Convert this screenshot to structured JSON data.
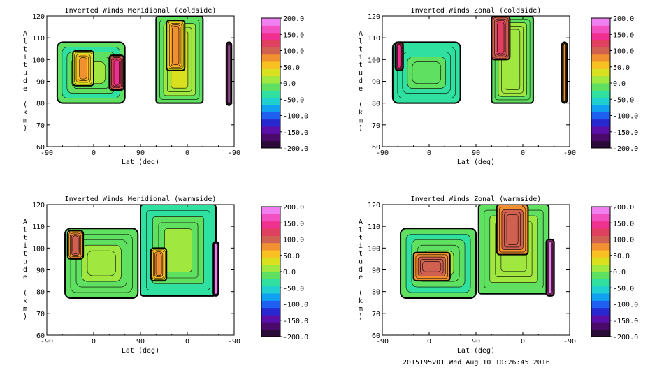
{
  "footer": "2015195v01 Wed Aug 10 10:26:45 2016",
  "colorbar": {
    "ticks": [
      "200.0",
      "150.0",
      "100.0",
      "50.0",
      "0.0",
      "-50.0",
      "-100.0",
      "-150.0",
      "-200.0"
    ],
    "colors": [
      "#2a0a36",
      "#4a0a6a",
      "#5a10a8",
      "#2828d0",
      "#2060f0",
      "#10a0f0",
      "#20d0d0",
      "#30e0a0",
      "#60e060",
      "#a0e840",
      "#d8e020",
      "#f8c020",
      "#f09030",
      "#d06050",
      "#e04060",
      "#f03090",
      "#f050c0",
      "#f080f0"
    ]
  },
  "chart_data": [
    {
      "type": "heatmap",
      "title": "Inverted Winds Meridional (coldside)",
      "xlabel": "Lat (deg)",
      "ylabel": "Altitude (km)",
      "xticks": [
        "-90",
        "0",
        "90",
        "0",
        "-90"
      ],
      "yticks": [
        "60",
        "70",
        "80",
        "90",
        "100",
        "110",
        "120"
      ],
      "ylim": [
        60,
        120
      ],
      "blobs": [
        {
          "x": [
            -70,
            60
          ],
          "y": [
            80,
            108
          ],
          "level": -20
        },
        {
          "x": [
            -40,
            0
          ],
          "y": [
            88,
            104
          ],
          "level": 30
        },
        {
          "x": [
            30,
            58
          ],
          "y": [
            86,
            102
          ],
          "level": 100
        },
        {
          "x": [
            120,
            210
          ],
          "y": [
            80,
            120
          ],
          "level": -15
        },
        {
          "x": [
            140,
            175
          ],
          "y": [
            95,
            118
          ],
          "level": 40
        },
        {
          "x": [
            255,
            265
          ],
          "y": [
            79,
            108
          ],
          "level": 150
        }
      ]
    },
    {
      "type": "heatmap",
      "title": "Inverted Winds Zonal (coldside)",
      "xlabel": "Lat (deg)",
      "ylabel": "Altitude (km)",
      "xticks": [
        "-90",
        "0",
        "90",
        "0",
        "-90"
      ],
      "yticks": [
        "60",
        "70",
        "80",
        "90",
        "100",
        "110",
        "120"
      ],
      "ylim": [
        60,
        120
      ],
      "blobs": [
        {
          "x": [
            -70,
            60
          ],
          "y": [
            80,
            108
          ],
          "level": -30
        },
        {
          "x": [
            -65,
            -50
          ],
          "y": [
            95,
            108
          ],
          "level": 110
        },
        {
          "x": [
            120,
            200
          ],
          "y": [
            80,
            120
          ],
          "level": -20
        },
        {
          "x": [
            120,
            155
          ],
          "y": [
            100,
            120
          ],
          "level": 90
        },
        {
          "x": [
            255,
            265
          ],
          "y": [
            80,
            108
          ],
          "level": 40
        }
      ]
    },
    {
      "type": "heatmap",
      "title": "Inverted Winds Meridional (warmside)",
      "xlabel": "Lat (deg)",
      "ylabel": "Altitude (km)",
      "xticks": [
        "-90",
        "0",
        "90",
        "0",
        "-90"
      ],
      "yticks": [
        "60",
        "70",
        "80",
        "90",
        "100",
        "110",
        "120"
      ],
      "ylim": [
        60,
        120
      ],
      "blobs": [
        {
          "x": [
            -55,
            85
          ],
          "y": [
            77,
            109
          ],
          "level": -10
        },
        {
          "x": [
            -50,
            -20
          ],
          "y": [
            95,
            108
          ],
          "level": 60
        },
        {
          "x": [
            90,
            235
          ],
          "y": [
            78,
            120
          ],
          "level": -40
        },
        {
          "x": [
            110,
            140
          ],
          "y": [
            85,
            100
          ],
          "level": 40
        },
        {
          "x": [
            230,
            240
          ],
          "y": [
            78,
            103
          ],
          "level": 150
        }
      ]
    },
    {
      "type": "heatmap",
      "title": "Inverted Winds Zonal (warmside)",
      "xlabel": "Lat (deg)",
      "ylabel": "Altitude (km)",
      "xticks": [
        "-90",
        "0",
        "90",
        "0",
        "-90"
      ],
      "yticks": [
        "60",
        "70",
        "80",
        "90",
        "100",
        "110",
        "120"
      ],
      "ylim": [
        60,
        120
      ],
      "blobs": [
        {
          "x": [
            -55,
            90
          ],
          "y": [
            77,
            109
          ],
          "level": -20
        },
        {
          "x": [
            -30,
            40
          ],
          "y": [
            85,
            98
          ],
          "level": 70
        },
        {
          "x": [
            95,
            230
          ],
          "y": [
            79,
            120
          ],
          "level": -20
        },
        {
          "x": [
            130,
            190
          ],
          "y": [
            97,
            120
          ],
          "level": 70
        },
        {
          "x": [
            225,
            240
          ],
          "y": [
            78,
            104
          ],
          "level": 150
        }
      ]
    }
  ]
}
